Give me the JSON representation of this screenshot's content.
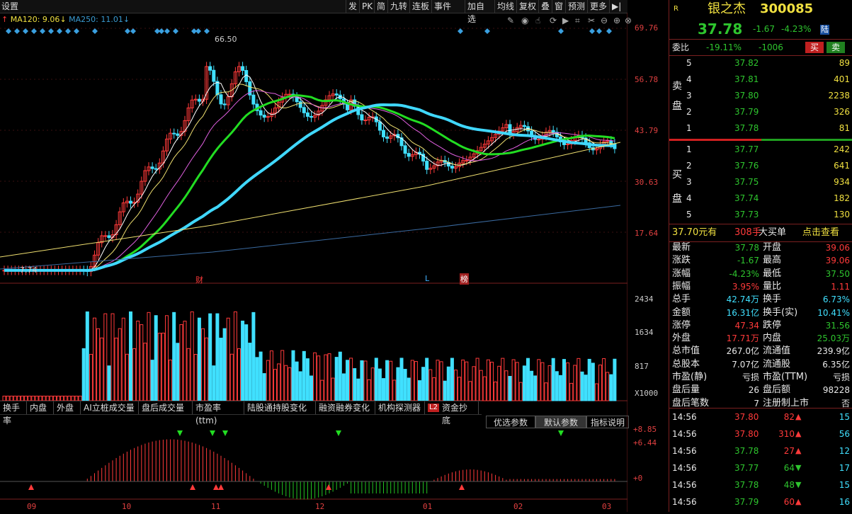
{
  "toolbar": {
    "settings": "设置",
    "buttons": [
      "发",
      "PK",
      "简",
      "九转",
      "连板",
      "事件",
      "加自选",
      "均线",
      "复权",
      "叠",
      "窗",
      "预测",
      "更多"
    ]
  },
  "ma_legend": {
    "ma120": "MA120: 9.06",
    "ma250": "MA250: 11.01"
  },
  "price_axis": [
    "69.76",
    "56.78",
    "43.79",
    "30.63",
    "17.64"
  ],
  "volume_axis": [
    "2434",
    "1634",
    "817",
    "X1000"
  ],
  "indicator_axis": [
    "+8.85",
    "+6.44",
    "+0"
  ],
  "date_axis": [
    "09",
    "10",
    "11",
    "12",
    "01",
    "02",
    "03"
  ],
  "annotations": {
    "high": "66.50",
    "low": "7.74",
    "cai": "财",
    "l": "L",
    "bang": "榜"
  },
  "bottom_tabs": [
    "换手率",
    "内盘",
    "外盘",
    "AI立桩成交量",
    "盘后成交量",
    "市盈率(ttm)",
    "陆股通持股变化",
    "融资融券变化",
    "机构探测器",
    "资金抄底"
  ],
  "bottom_tab_badge": "L2",
  "param_buttons": [
    "优选参数",
    "默认参数",
    "指标说明"
  ],
  "stock": {
    "badge": "R",
    "name": "银之杰",
    "code": "300085",
    "price": "37.78",
    "change": "-1.67",
    "change_pct": "-4.23%",
    "market": "陆",
    "weibi_label": "委比",
    "weibi": "-19.11%",
    "weicha": "-1006",
    "buy_btn": "买",
    "sell_btn": "卖"
  },
  "asks": [
    {
      "level": "5",
      "price": "37.82",
      "vol": "89"
    },
    {
      "level": "4",
      "price": "37.81",
      "vol": "401"
    },
    {
      "level": "3",
      "price": "37.80",
      "vol": "2238"
    },
    {
      "level": "2",
      "price": "37.79",
      "vol": "326"
    },
    {
      "level": "1",
      "price": "37.78",
      "vol": "81"
    }
  ],
  "bids": [
    {
      "level": "1",
      "price": "37.77",
      "vol": "242"
    },
    {
      "level": "2",
      "price": "37.76",
      "vol": "641"
    },
    {
      "level": "3",
      "price": "37.75",
      "vol": "934"
    },
    {
      "level": "4",
      "price": "37.74",
      "vol": "182"
    },
    {
      "level": "5",
      "price": "37.73",
      "vol": "130"
    }
  ],
  "ask_label": [
    "卖",
    "盘"
  ],
  "bid_label": [
    "买",
    "盘"
  ],
  "big_order": {
    "price": "37.70元有",
    "vol": "308手",
    "label": "大买单",
    "link": "点击查看"
  },
  "stats": [
    {
      "l1": "最新",
      "v1": "37.78",
      "c1": "green",
      "l2": "开盘",
      "v2": "39.06",
      "c2": "red"
    },
    {
      "l1": "涨跌",
      "v1": "-1.67",
      "c1": "green",
      "l2": "最高",
      "v2": "39.06",
      "c2": "red"
    },
    {
      "l1": "涨幅",
      "v1": "-4.23%",
      "c1": "green",
      "l2": "最低",
      "v2": "37.50",
      "c2": "green"
    },
    {
      "l1": "振幅",
      "v1": "3.95%",
      "c1": "red",
      "l2": "量比",
      "v2": "1.11",
      "c2": "red"
    },
    {
      "l1": "总手",
      "v1": "42.74万",
      "c1": "cyan",
      "l2": "换手",
      "v2": "6.73%",
      "c2": "cyan"
    },
    {
      "l1": "金额",
      "v1": "16.31亿",
      "c1": "cyan",
      "l2": "换手(实)",
      "v2": "10.41%",
      "c2": "cyan"
    },
    {
      "l1": "涨停",
      "v1": "47.34",
      "c1": "red",
      "l2": "跌停",
      "v2": "31.56",
      "c2": "green"
    },
    {
      "l1": "外盘",
      "v1": "17.71万",
      "c1": "red",
      "l2": "内盘",
      "v2": "25.03万",
      "c2": "green"
    },
    {
      "l1": "总市值",
      "v1": "267.0亿",
      "c1": "white",
      "l2": "流通值",
      "v2": "239.9亿",
      "c2": "white"
    },
    {
      "l1": "总股本",
      "v1": "7.07亿",
      "c1": "white",
      "l2": "流通股",
      "v2": "6.35亿",
      "c2": "white"
    },
    {
      "l1": "市盈(静)",
      "v1": "亏损",
      "c1": "white",
      "l2": "市盈(TTM)",
      "v2": "亏损",
      "c2": "white"
    },
    {
      "l1": "盘后量",
      "v1": "26",
      "c1": "white",
      "l2": "盘后额",
      "v2": "98228",
      "c2": "white"
    },
    {
      "l1": "盘后笔数",
      "v1": "7",
      "c1": "white",
      "l2": "注册制上市",
      "v2": "否",
      "c2": "white"
    }
  ],
  "ticks": [
    {
      "time": "14:56",
      "price": "37.80",
      "pc": "red",
      "vol": "82",
      "dir": "up",
      "n": "15"
    },
    {
      "time": "14:56",
      "price": "37.80",
      "pc": "red",
      "vol": "310",
      "dir": "up",
      "n": "56"
    },
    {
      "time": "14:56",
      "price": "37.78",
      "pc": "green",
      "vol": "27",
      "dir": "up",
      "n": "12"
    },
    {
      "time": "14:56",
      "price": "37.77",
      "pc": "green",
      "vol": "64",
      "dir": "down",
      "n": "17"
    },
    {
      "time": "14:56",
      "price": "37.78",
      "pc": "green",
      "vol": "48",
      "dir": "down",
      "n": "15"
    },
    {
      "time": "14:56",
      "price": "37.79",
      "pc": "green",
      "vol": "60",
      "dir": "up",
      "n": "16"
    }
  ],
  "colors": {
    "up": "#ff3a3a",
    "down": "#40e0ff",
    "ma_green": "#22dd22",
    "ma_cyan": "#40d8ff",
    "ma_yellow": "#f0e070",
    "ma_pink": "#e060e0"
  }
}
